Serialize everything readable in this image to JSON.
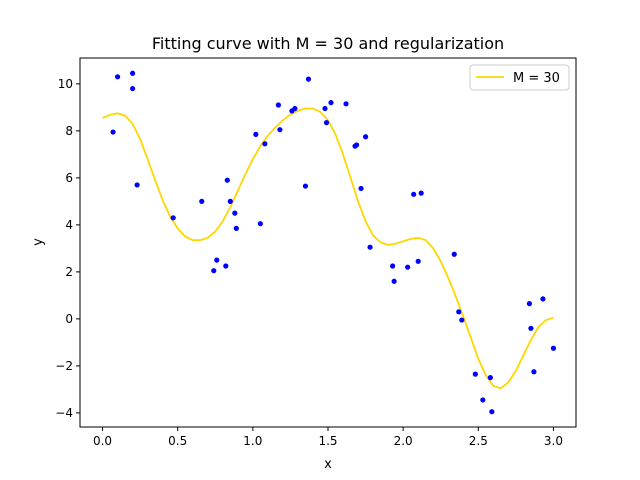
{
  "chart_data": {
    "type": "scatter",
    "title": "Fitting curve with M = 30 and regularization",
    "xlabel": "x",
    "ylabel": "y",
    "xlim": [
      -0.15,
      3.15
    ],
    "ylim": [
      -4.6,
      11.1
    ],
    "xticks": [
      0.0,
      0.5,
      1.0,
      1.5,
      2.0,
      2.5,
      3.0
    ],
    "xtick_labels": [
      "0.0",
      "0.5",
      "1.0",
      "1.5",
      "2.0",
      "2.5",
      "3.0"
    ],
    "yticks": [
      -4,
      -2,
      0,
      2,
      4,
      6,
      8,
      10
    ],
    "ytick_labels": [
      "−4",
      "−2",
      "0",
      "2",
      "4",
      "6",
      "8",
      "10"
    ],
    "grid": false,
    "legend_position": "top-right",
    "series": [
      {
        "name": "M = 30",
        "kind": "line",
        "color": "#FFD700",
        "x": [
          0.0,
          0.05,
          0.1,
          0.15,
          0.2,
          0.25,
          0.3,
          0.35,
          0.4,
          0.45,
          0.5,
          0.55,
          0.6,
          0.65,
          0.7,
          0.75,
          0.8,
          0.85,
          0.9,
          0.95,
          1.0,
          1.05,
          1.1,
          1.15,
          1.2,
          1.25,
          1.3,
          1.35,
          1.4,
          1.45,
          1.5,
          1.55,
          1.6,
          1.65,
          1.7,
          1.75,
          1.8,
          1.85,
          1.9,
          1.95,
          2.0,
          2.05,
          2.1,
          2.15,
          2.2,
          2.25,
          2.3,
          2.35,
          2.4,
          2.45,
          2.5,
          2.55,
          2.6,
          2.65,
          2.7,
          2.75,
          2.8,
          2.85,
          2.9,
          2.95,
          3.0
        ],
        "y": [
          8.55,
          8.68,
          8.75,
          8.65,
          8.3,
          7.65,
          6.8,
          5.9,
          5.05,
          4.35,
          3.85,
          3.5,
          3.35,
          3.35,
          3.45,
          3.72,
          4.15,
          4.75,
          5.45,
          6.15,
          6.8,
          7.35,
          7.8,
          8.15,
          8.45,
          8.7,
          8.85,
          8.95,
          8.95,
          8.8,
          8.45,
          7.85,
          7.0,
          6.0,
          5.0,
          4.15,
          3.55,
          3.25,
          3.15,
          3.2,
          3.3,
          3.4,
          3.45,
          3.35,
          3.0,
          2.45,
          1.75,
          0.95,
          0.1,
          -0.8,
          -1.7,
          -2.4,
          -2.85,
          -2.95,
          -2.7,
          -2.2,
          -1.55,
          -0.9,
          -0.35,
          -0.05,
          0.05
        ]
      },
      {
        "name": "",
        "kind": "scatter",
        "color": "#0000FF",
        "x": [
          0.07,
          0.1,
          0.2,
          0.2,
          0.23,
          0.47,
          0.66,
          0.74,
          0.76,
          0.82,
          0.83,
          0.85,
          0.88,
          0.89,
          1.02,
          1.05,
          1.08,
          1.17,
          1.18,
          1.26,
          1.28,
          1.35,
          1.37,
          1.48,
          1.49,
          1.52,
          1.62,
          1.68,
          1.69,
          1.72,
          1.75,
          1.78,
          1.93,
          1.94,
          2.03,
          2.07,
          2.1,
          2.12,
          2.34,
          2.37,
          2.39,
          2.48,
          2.53,
          2.58,
          2.59,
          2.84,
          2.85,
          2.87,
          2.93,
          3.0
        ],
        "y": [
          7.95,
          10.3,
          10.45,
          9.8,
          5.7,
          4.3,
          5.0,
          2.05,
          2.5,
          2.25,
          5.9,
          5.0,
          4.5,
          3.85,
          7.85,
          4.05,
          7.45,
          9.1,
          8.05,
          8.85,
          8.95,
          5.65,
          10.2,
          8.95,
          8.35,
          9.2,
          9.15,
          7.35,
          7.4,
          5.55,
          7.75,
          3.05,
          2.25,
          1.6,
          2.2,
          5.3,
          2.45,
          5.35,
          2.75,
          0.3,
          -0.05,
          -2.35,
          -3.45,
          -2.5,
          -3.95,
          0.65,
          -0.4,
          -2.25,
          0.85,
          -1.25
        ]
      }
    ]
  }
}
